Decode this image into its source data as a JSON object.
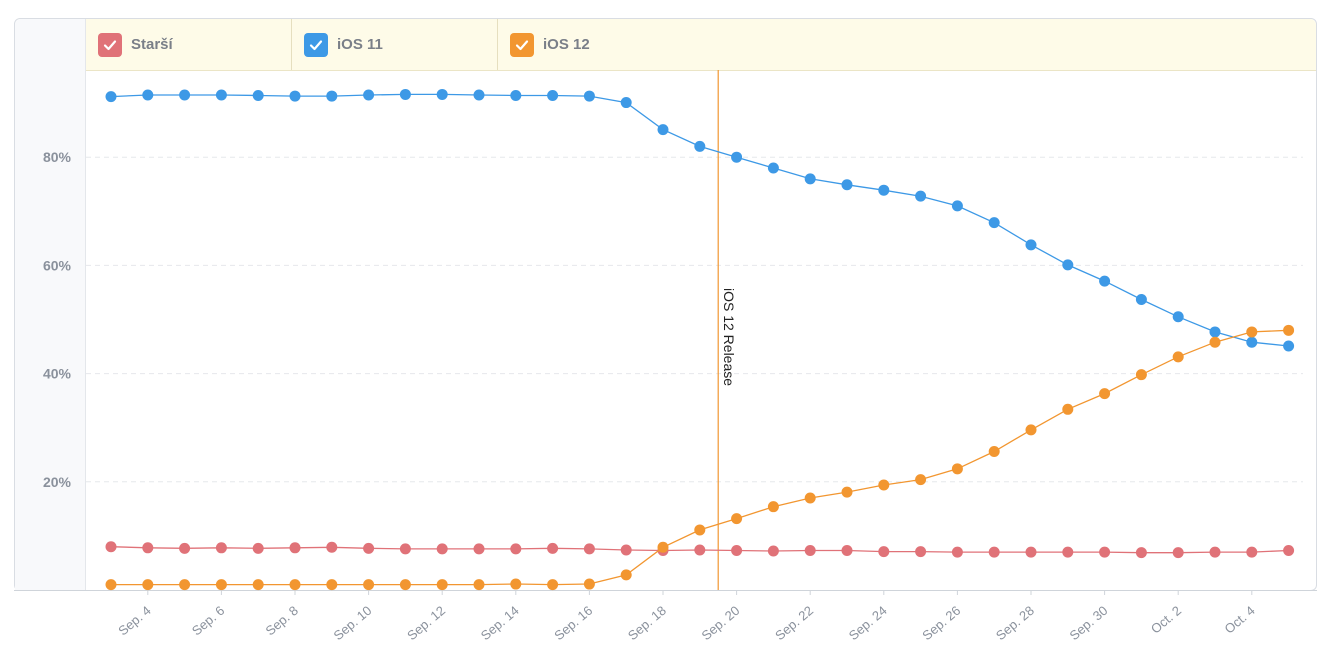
{
  "legend": {
    "items": [
      {
        "label": "Starší",
        "color": "#e07278"
      },
      {
        "label": "iOS 11",
        "color": "#3d99e6"
      },
      {
        "label": "iOS 12",
        "color": "#f29630"
      }
    ]
  },
  "chart_data": {
    "type": "line",
    "x": [
      "Sep. 3",
      "Sep. 4",
      "Sep. 5",
      "Sep. 6",
      "Sep. 7",
      "Sep. 8",
      "Sep. 9",
      "Sep. 10",
      "Sep. 11",
      "Sep. 12",
      "Sep. 13",
      "Sep. 14",
      "Sep. 15",
      "Sep. 16",
      "Sep. 17",
      "Sep. 18",
      "Sep. 19",
      "Sep. 20",
      "Sep. 21",
      "Sep. 22",
      "Sep. 23",
      "Sep. 24",
      "Sep. 25",
      "Sep. 26",
      "Sep. 27",
      "Sep. 28",
      "Sep. 29",
      "Sep. 30",
      "Oct. 1",
      "Oct. 2",
      "Oct. 3",
      "Oct. 4",
      "Oct. 5"
    ],
    "x_tick_labels": [
      "Sep. 4",
      "Sep. 6",
      "Sep. 8",
      "Sep. 10",
      "Sep. 12",
      "Sep. 14",
      "Sep. 16",
      "Sep. 18",
      "Sep. 20",
      "Sep. 22",
      "Sep. 24",
      "Sep. 26",
      "Sep. 28",
      "Sep. 30",
      "Oct. 2",
      "Oct. 4"
    ],
    "y_tick_labels": [
      "20%",
      "40%",
      "60%",
      "80%"
    ],
    "ylim": [
      0,
      100
    ],
    "grid": true,
    "legend_position": "top",
    "series": [
      {
        "name": "Starší",
        "color": "#e07278",
        "values": [
          8.0,
          7.8,
          7.7,
          7.8,
          7.7,
          7.8,
          7.9,
          7.7,
          7.6,
          7.6,
          7.6,
          7.6,
          7.7,
          7.6,
          7.4,
          7.3,
          7.4,
          7.3,
          7.2,
          7.3,
          7.3,
          7.1,
          7.1,
          7.0,
          7.0,
          7.0,
          7.0,
          7.0,
          6.9,
          6.9,
          7.0,
          7.0,
          7.3
        ]
      },
      {
        "name": "iOS 11",
        "color": "#3d99e6",
        "values": [
          91.2,
          91.5,
          91.5,
          91.5,
          91.4,
          91.3,
          91.3,
          91.5,
          91.6,
          91.6,
          91.5,
          91.4,
          91.4,
          91.3,
          90.1,
          85.1,
          82.0,
          80.0,
          78.0,
          76.0,
          74.9,
          73.9,
          72.8,
          71.0,
          67.9,
          63.8,
          60.1,
          57.1,
          53.7,
          50.5,
          47.7,
          45.8,
          45.1
        ]
      },
      {
        "name": "iOS 12",
        "color": "#f29630",
        "values": [
          1.0,
          1.0,
          1.0,
          1.0,
          1.0,
          1.0,
          1.0,
          1.0,
          1.0,
          1.0,
          1.0,
          1.1,
          1.0,
          1.1,
          2.8,
          7.9,
          11.1,
          13.2,
          15.4,
          17.0,
          18.1,
          19.4,
          20.4,
          22.4,
          25.6,
          29.6,
          33.4,
          36.3,
          39.8,
          43.1,
          45.8,
          47.7,
          48.0
        ]
      }
    ],
    "annotations": [
      {
        "text": "iOS 12 Release",
        "x": 16.5,
        "color": "#f29630"
      }
    ]
  }
}
